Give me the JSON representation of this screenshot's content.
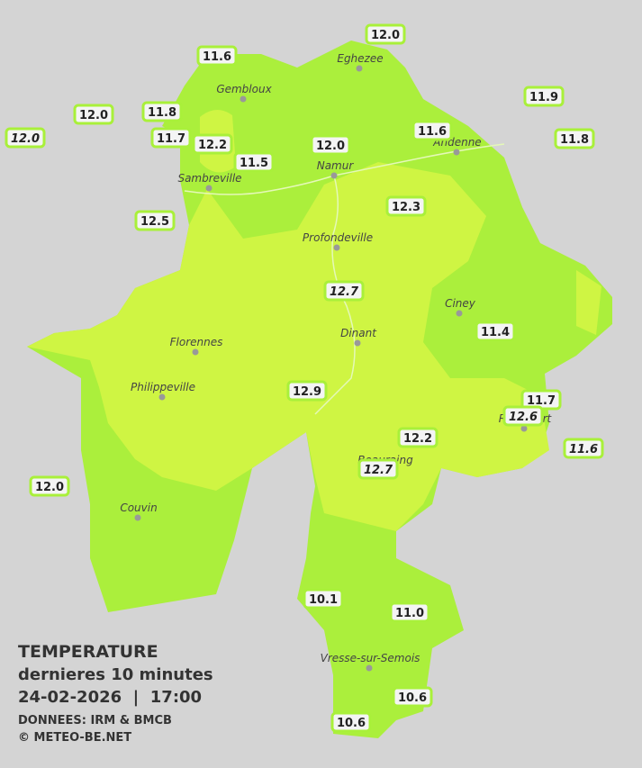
{
  "header": {
    "title": "TEMPERATURE",
    "subtitle": "dernieres 10 minutes",
    "datetime": "24-02-2026  |  17:00",
    "source": "DONNEES: IRM & BMCB",
    "copyright": "© METEO-BE.NET"
  },
  "cities": [
    "Eghezee",
    "Gembloux",
    "Andenne",
    "Namur",
    "Sambreville",
    "Profondeville",
    "Ciney",
    "Dinant",
    "Florennes",
    "Philippeville",
    "Rochefort",
    "Beauraing",
    "Couvin",
    "Vresse-sur-Semois"
  ],
  "stations": [
    {
      "value": "12.0"
    },
    {
      "value": "11.6"
    },
    {
      "value": "11.9"
    },
    {
      "value": "12.0"
    },
    {
      "value": "11.8"
    },
    {
      "value": "12.0",
      "italic": true
    },
    {
      "value": "11.7"
    },
    {
      "value": "12.2"
    },
    {
      "value": "11.6"
    },
    {
      "value": "11.8"
    },
    {
      "value": "12.0"
    },
    {
      "value": "11.5"
    },
    {
      "value": "12.3"
    },
    {
      "value": "12.5"
    },
    {
      "value": "12.7",
      "italic": true
    },
    {
      "value": "11.4"
    },
    {
      "value": "12.9"
    },
    {
      "value": "11.7"
    },
    {
      "value": "12.6",
      "italic": true
    },
    {
      "value": "12.2"
    },
    {
      "value": "11.6",
      "italic": true
    },
    {
      "value": "12.7",
      "italic": true
    },
    {
      "value": "12.0"
    },
    {
      "value": "10.1"
    },
    {
      "value": "11.0"
    },
    {
      "value": "10.6"
    },
    {
      "value": "10.6"
    }
  ]
}
